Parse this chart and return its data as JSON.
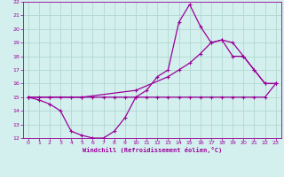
{
  "title": "",
  "xlabel": "Windchill (Refroidissement éolien,°C)",
  "ylabel": "",
  "bg_color": "#d4f0ee",
  "grid_color": "#b0d8d0",
  "line_color": "#990099",
  "xlim": [
    -0.5,
    23.5
  ],
  "ylim": [
    12,
    22
  ],
  "xticks": [
    0,
    1,
    2,
    3,
    4,
    5,
    6,
    7,
    8,
    9,
    10,
    11,
    12,
    13,
    14,
    15,
    16,
    17,
    18,
    19,
    20,
    21,
    22,
    23
  ],
  "yticks": [
    12,
    13,
    14,
    15,
    16,
    17,
    18,
    19,
    20,
    21,
    22
  ],
  "line1_x": [
    0,
    1,
    2,
    3,
    4,
    5,
    6,
    7,
    8,
    9,
    10,
    11,
    12,
    13,
    14,
    15,
    16,
    17,
    18,
    19,
    20,
    21,
    22,
    23
  ],
  "line1_y": [
    15.0,
    15.0,
    15.0,
    15.0,
    15.0,
    15.0,
    15.0,
    15.0,
    15.0,
    15.0,
    15.0,
    15.0,
    15.0,
    15.0,
    15.0,
    15.0,
    15.0,
    15.0,
    15.0,
    15.0,
    15.0,
    15.0,
    15.0,
    16.0
  ],
  "line2_x": [
    0,
    1,
    2,
    3,
    4,
    5,
    6,
    7,
    8,
    9,
    10,
    11,
    12,
    13,
    14,
    15,
    16,
    17,
    18,
    19,
    20,
    21,
    22,
    23
  ],
  "line2_y": [
    15.0,
    14.8,
    14.5,
    14.0,
    12.5,
    12.2,
    12.0,
    12.0,
    12.5,
    13.5,
    15.0,
    15.5,
    16.5,
    17.0,
    20.5,
    21.8,
    20.2,
    19.0,
    19.2,
    18.0,
    18.0,
    17.0,
    16.0,
    16.0
  ],
  "line3_x": [
    0,
    2,
    5,
    10,
    13,
    14,
    15,
    16,
    17,
    18,
    19,
    20,
    21,
    22,
    23
  ],
  "line3_y": [
    15.0,
    15.0,
    15.0,
    15.5,
    16.5,
    17.0,
    17.5,
    18.2,
    19.0,
    19.2,
    19.0,
    18.0,
    17.0,
    16.0,
    16.0
  ]
}
